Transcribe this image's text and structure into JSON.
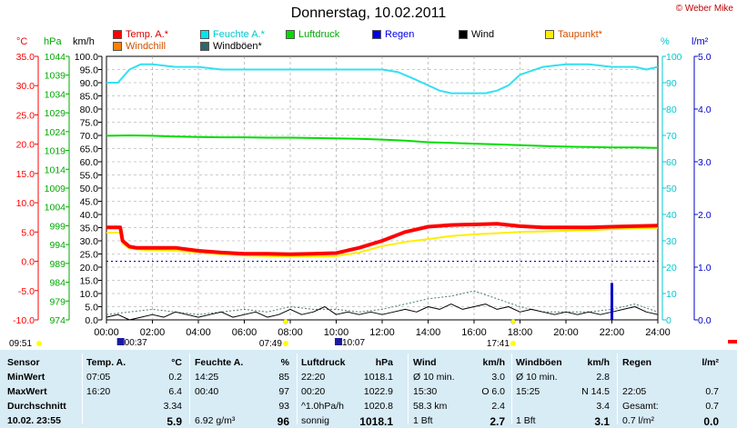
{
  "header": {
    "title": "Donnerstag, 10.02.2011",
    "copyright": "© Weber Mike"
  },
  "legend": [
    {
      "label": "Temp. A.*",
      "color": "#ff0000"
    },
    {
      "label": "Feuchte A.*",
      "color": "#00e5ee"
    },
    {
      "label": "Luftdruck",
      "color": "#00dd00"
    },
    {
      "label": "Regen",
      "color": "#0000ee"
    },
    {
      "label": "Wind",
      "color": "#000000"
    },
    {
      "label": "Taupunkt*",
      "color": "#ffee00"
    },
    {
      "label": "Windchill",
      "color": "#ff8000"
    },
    {
      "label": "Windböen*",
      "color": "#336666"
    }
  ],
  "units": {
    "temp": "°C",
    "pressure": "hPa",
    "wind": "km/h",
    "humidity": "%",
    "rain": "l/m²"
  },
  "colors": {
    "temp": "#ff0000",
    "pressure": "#00cc00",
    "humidity": "#00d0d8",
    "rain": "#0000cc",
    "dewpoint": "#ffee00",
    "wind": "#000000",
    "gust": "#336666",
    "table_bg": "#d8ecf6"
  },
  "chart_data": {
    "type": "line",
    "title": "Donnerstag, 10.02.2011",
    "x_unit": "hours",
    "xlim": [
      0,
      24
    ],
    "x_ticks": [
      "00:00",
      "02:00",
      "04:00",
      "06:00",
      "08:00",
      "10:00",
      "12:00",
      "14:00",
      "16:00",
      "18:00",
      "20:00",
      "22:00",
      "24:00"
    ],
    "axes": {
      "temp": {
        "ticks": [
          "35.0",
          "30.0",
          "25.0",
          "20.0",
          "15.0",
          "10.0",
          "5.0",
          "0.0",
          "-5.0",
          "-10.0"
        ],
        "ylim": [
          -10,
          35
        ]
      },
      "pressure": {
        "ticks": [
          "1044",
          "1039",
          "1034",
          "1029",
          "1024",
          "1019",
          "1014",
          "1009",
          "1004",
          "999",
          "994",
          "989",
          "984",
          "979",
          "974"
        ],
        "ylim": [
          974,
          1044
        ]
      },
      "wind": {
        "ticks": [
          "100.0",
          "95.0",
          "90.0",
          "85.0",
          "80.0",
          "75.0",
          "70.0",
          "65.0",
          "60.0",
          "55.0",
          "50.0",
          "45.0",
          "40.0",
          "35.0",
          "30.0",
          "25.0",
          "20.0",
          "15.0",
          "10.0",
          "5.0",
          "0.0"
        ],
        "ylim": [
          0,
          100
        ]
      },
      "humidity": {
        "ticks": [
          "100",
          "90",
          "80",
          "70",
          "60",
          "50",
          "40",
          "30",
          "20",
          "10",
          "0"
        ],
        "ylim": [
          0,
          100
        ]
      },
      "rain": {
        "ticks": [
          "5.0",
          "4.0",
          "3.0",
          "2.0",
          "1.0",
          "0.0"
        ],
        "ylim": [
          0,
          5
        ]
      }
    },
    "series": [
      {
        "name": "Temp. A.*",
        "axis": "temp",
        "x": [
          0,
          0.6,
          0.7,
          1,
          1.3,
          2,
          3,
          4,
          5,
          6,
          7,
          8,
          9,
          10,
          11,
          12,
          13,
          14,
          15,
          16,
          17,
          18,
          19,
          20,
          21,
          22,
          23,
          24
        ],
        "y": [
          5.8,
          5.8,
          3.5,
          2.5,
          2.3,
          2.3,
          2.3,
          1.8,
          1.5,
          1.3,
          1.3,
          1.2,
          1.3,
          1.4,
          2.3,
          3.5,
          5.0,
          5.9,
          6.2,
          6.3,
          6.4,
          6.0,
          5.8,
          5.8,
          5.8,
          5.9,
          6.0,
          6.1
        ]
      },
      {
        "name": "Feuchte A.*",
        "axis": "humidity",
        "x": [
          0,
          0.5,
          0.7,
          1,
          1.5,
          2,
          3,
          4,
          5,
          6,
          7,
          8,
          9,
          10,
          11,
          12,
          12.7,
          13.5,
          14,
          14.5,
          15,
          16,
          16.5,
          17,
          17.5,
          18,
          19,
          20,
          21,
          22,
          23,
          23.5,
          24
        ],
        "y": [
          90,
          90,
          92,
          95,
          97,
          97,
          96,
          96,
          95,
          95,
          95,
          95,
          95,
          95,
          95,
          95,
          94,
          91,
          89,
          87,
          86,
          86,
          86,
          87,
          89,
          93,
          96,
          97,
          97,
          96,
          96,
          95,
          96
        ]
      },
      {
        "name": "Luftdruck",
        "axis": "pressure",
        "x": [
          0,
          1,
          2,
          3,
          4,
          5,
          6,
          7,
          8,
          9,
          10,
          11,
          12,
          13,
          14,
          15,
          16,
          17,
          18,
          19,
          20,
          21,
          22,
          23,
          24
        ],
        "y": [
          1022.9,
          1023.0,
          1022.9,
          1022.7,
          1022.6,
          1022.5,
          1022.5,
          1022.4,
          1022.4,
          1022.3,
          1022.2,
          1022.1,
          1021.9,
          1021.6,
          1021.2,
          1021.0,
          1020.8,
          1020.6,
          1020.4,
          1020.2,
          1020.0,
          1019.9,
          1019.8,
          1019.8,
          1019.7
        ]
      },
      {
        "name": "Taupunkt*",
        "axis": "temp",
        "x": [
          0,
          0.6,
          0.7,
          1,
          1.5,
          2,
          3,
          4,
          5,
          6,
          7,
          8,
          9,
          10,
          11,
          12,
          13,
          14,
          15,
          16,
          17,
          18,
          19,
          20,
          21,
          22,
          23,
          24
        ],
        "y": [
          4.9,
          4.9,
          3.0,
          2.2,
          2.0,
          1.9,
          1.8,
          1.5,
          1.2,
          1.0,
          0.9,
          0.8,
          0.8,
          0.9,
          1.5,
          2.6,
          3.3,
          3.8,
          4.3,
          4.6,
          4.8,
          5.0,
          5.1,
          5.2,
          5.3,
          5.5,
          5.6,
          5.7
        ]
      },
      {
        "name": "Wind",
        "axis": "wind",
        "x": [
          0,
          0.5,
          1,
          1.5,
          2,
          2.5,
          3,
          3.5,
          4,
          4.5,
          5,
          5.5,
          6,
          6.5,
          7,
          7.5,
          8,
          8.5,
          9,
          9.5,
          10,
          10.5,
          11,
          11.5,
          12,
          12.5,
          13,
          13.5,
          14,
          14.5,
          15,
          15.5,
          16,
          16.5,
          17,
          17.5,
          18,
          18.5,
          19,
          19.5,
          20,
          20.5,
          21,
          21.5,
          22,
          22.5,
          23,
          23.5,
          24
        ],
        "y": [
          1,
          2,
          0,
          1,
          2,
          1,
          3,
          2,
          1,
          2,
          3,
          1,
          2,
          3,
          1,
          2,
          4,
          2,
          3,
          5,
          2,
          3,
          2,
          3,
          2,
          3,
          4,
          3,
          5,
          4,
          6,
          4,
          5,
          6,
          4,
          5,
          3,
          4,
          3,
          2,
          3,
          2,
          3,
          2,
          3,
          4,
          5,
          3,
          2
        ]
      },
      {
        "name": "Windböen*",
        "axis": "wind",
        "x": [
          0,
          1,
          2,
          3,
          4,
          5,
          6,
          7,
          8,
          9,
          10,
          11,
          12,
          13,
          14,
          15,
          16,
          17,
          18,
          19,
          20,
          21,
          22,
          23,
          24
        ],
        "y": [
          2,
          3,
          4,
          3,
          2,
          3,
          4,
          3,
          5,
          4,
          4,
          3,
          4,
          6,
          8,
          9,
          11,
          8,
          5,
          3,
          3,
          3,
          4,
          6,
          3
        ]
      }
    ],
    "rain_events": [
      {
        "x": 22.0,
        "y": 0.7
      }
    ],
    "dotted_line": {
      "axis": "temp",
      "y": 0.0
    },
    "markers": [
      {
        "label": "09:51",
        "x": -1.2,
        "kind": "sunrise"
      },
      {
        "label": "00:37",
        "x": 0.62,
        "kind": "max"
      },
      {
        "label": "07:49",
        "x": 7.8,
        "kind": "sun"
      },
      {
        "label": "10:07",
        "x": 10.1,
        "kind": "max"
      },
      {
        "label": "17:41",
        "x": 17.7,
        "kind": "sun"
      }
    ]
  },
  "table": {
    "headers": [
      "Sensor",
      "Temp. A.",
      "°C",
      "Feuchte A.",
      "%",
      "Luftdruck",
      "hPa",
      "Wind",
      "km/h",
      "Windböen",
      "km/h",
      "Regen",
      "l/m²"
    ],
    "rows": [
      {
        "label": "MinWert",
        "cells": [
          "07:05",
          "0.2",
          "14:25",
          "85",
          "22:20",
          "1018.1",
          "Ø 10 min.",
          "3.0",
          "Ø 10 min.",
          "2.8",
          "",
          ""
        ]
      },
      {
        "label": "MaxWert",
        "cells": [
          "16:20",
          "6.4",
          "00:40",
          "97",
          "00:20",
          "1022.9",
          "15:30",
          "O 6.0",
          "15:25",
          "N 14.5",
          "22:05",
          "0.7"
        ]
      },
      {
        "label": "Durchschnitt",
        "cells": [
          "",
          "3.34",
          "",
          "93",
          "^1.0hPa/h",
          "1020.8",
          "58.3 km",
          "2.4",
          "",
          "3.4",
          "Gesamt:",
          "0.7"
        ]
      },
      {
        "label": "10.02. 23:55",
        "cells": [
          "",
          "5.9",
          "6.92 g/m³",
          "96",
          "sonnig",
          "1018.1",
          "1 Bft",
          "2.7",
          "1 Bft",
          "3.1",
          "0.7 l/m²",
          "0.0"
        ]
      }
    ]
  }
}
